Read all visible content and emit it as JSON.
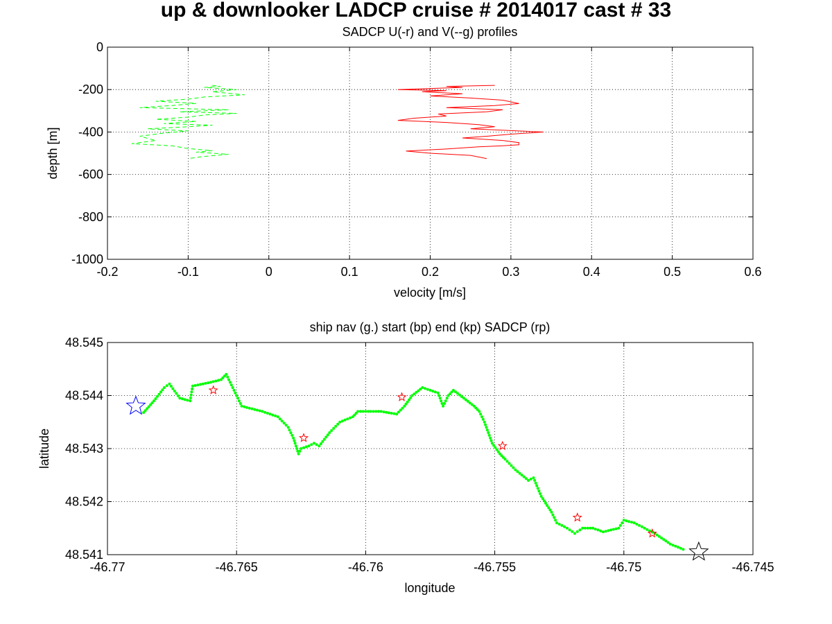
{
  "suptitle": "up & downlooker LADCP cruise # 2014017 cast # 33",
  "chart_data": [
    {
      "type": "line",
      "title": "SADCP U(-r) and V(--g) profiles",
      "xlabel": "velocity [m/s]",
      "ylabel": "depth [m]",
      "xlim": [
        -0.2,
        0.6
      ],
      "ylim": [
        -1000,
        0
      ],
      "xticks": [
        "-0.2",
        "-0.1",
        "0",
        "0.1",
        "0.2",
        "0.3",
        "0.4",
        "0.5",
        "0.6"
      ],
      "yticks": [
        "0",
        "-200",
        "-400",
        "-600",
        "-800",
        "-1000"
      ],
      "grid": true,
      "series": [
        {
          "color": "#ff0000",
          "style": "solid",
          "points": [
            [
              0.28,
              -180
            ],
            [
              0.22,
              -185
            ],
            [
              0.24,
              -190
            ],
            [
              0.16,
              -200
            ],
            [
              0.22,
              -205
            ],
            [
              0.19,
              -210
            ],
            [
              0.24,
              -220
            ],
            [
              0.2,
              -230
            ],
            [
              0.25,
              -240
            ],
            [
              0.29,
              -250
            ],
            [
              0.3,
              -258
            ],
            [
              0.31,
              -266
            ],
            [
              0.28,
              -275
            ],
            [
              0.22,
              -285
            ],
            [
              0.29,
              -295
            ],
            [
              0.27,
              -305
            ],
            [
              0.21,
              -315
            ],
            [
              0.22,
              -325
            ],
            [
              0.18,
              -335
            ],
            [
              0.16,
              -345
            ],
            [
              0.22,
              -355
            ],
            [
              0.26,
              -365
            ],
            [
              0.28,
              -375
            ],
            [
              0.25,
              -385
            ],
            [
              0.34,
              -400
            ],
            [
              0.3,
              -410
            ],
            [
              0.27,
              -420
            ],
            [
              0.24,
              -428
            ],
            [
              0.27,
              -435
            ],
            [
              0.29,
              -440
            ],
            [
              0.31,
              -450
            ],
            [
              0.31,
              -460
            ],
            [
              0.29,
              -465
            ],
            [
              0.26,
              -470
            ],
            [
              0.22,
              -480
            ],
            [
              0.17,
              -490
            ],
            [
              0.2,
              -500
            ],
            [
              0.25,
              -510
            ],
            [
              0.27,
              -525
            ]
          ]
        },
        {
          "color": "#00ff00",
          "style": "dashed",
          "points": [
            [
              -0.07,
              -180
            ],
            [
              -0.06,
              -185
            ],
            [
              -0.08,
              -190
            ],
            [
              -0.04,
              -200
            ],
            [
              -0.07,
              -210
            ],
            [
              -0.03,
              -225
            ],
            [
              -0.08,
              -235
            ],
            [
              -0.1,
              -245
            ],
            [
              -0.14,
              -255
            ],
            [
              -0.09,
              -265
            ],
            [
              -0.12,
              -275
            ],
            [
              -0.16,
              -285
            ],
            [
              -0.05,
              -295
            ],
            [
              -0.11,
              -305
            ],
            [
              -0.04,
              -312
            ],
            [
              -0.08,
              -320
            ],
            [
              -0.1,
              -330
            ],
            [
              -0.14,
              -340
            ],
            [
              -0.09,
              -350
            ],
            [
              -0.13,
              -360
            ],
            [
              -0.07,
              -368
            ],
            [
              -0.1,
              -375
            ],
            [
              -0.15,
              -385
            ],
            [
              -0.1,
              -395
            ],
            [
              -0.13,
              -405
            ],
            [
              -0.16,
              -420
            ],
            [
              -0.15,
              -430
            ],
            [
              -0.14,
              -440
            ],
            [
              -0.17,
              -455
            ],
            [
              -0.12,
              -465
            ],
            [
              -0.1,
              -478
            ],
            [
              -0.07,
              -488
            ],
            [
              -0.09,
              -495
            ],
            [
              -0.05,
              -505
            ],
            [
              -0.08,
              -515
            ],
            [
              -0.1,
              -525
            ]
          ]
        }
      ]
    },
    {
      "type": "scatter",
      "title": "ship nav (g.) start (bp) end (kp) SADCP (rp)",
      "xlabel": "longitude",
      "ylabel": "latitude",
      "xlim": [
        -46.77,
        -46.745
      ],
      "ylim": [
        48.541,
        48.545
      ],
      "xticks": [
        "-46.77",
        "-46.765",
        "-46.76",
        "-46.755",
        "-46.75",
        "-46.745"
      ],
      "yticks": [
        "48.545",
        "48.544",
        "48.543",
        "48.542",
        "48.541"
      ],
      "grid": true,
      "track_color": "#00ff00",
      "track": [
        [
          -46.7686,
          48.54368
        ],
        [
          -46.7682,
          48.5439
        ],
        [
          -46.7678,
          48.54415
        ],
        [
          -46.7676,
          48.54422
        ],
        [
          -46.7672,
          48.54395
        ],
        [
          -46.7668,
          48.5439
        ],
        [
          -46.7667,
          48.54418
        ],
        [
          -46.7665,
          48.5442
        ],
        [
          -46.766,
          48.54425
        ],
        [
          -46.7656,
          48.5443
        ],
        [
          -46.7654,
          48.5444
        ],
        [
          -46.7652,
          48.5442
        ],
        [
          -46.765,
          48.544
        ],
        [
          -46.7648,
          48.5438
        ],
        [
          -46.764,
          48.5437
        ],
        [
          -46.7634,
          48.5436
        ],
        [
          -46.763,
          48.5434
        ],
        [
          -46.7628,
          48.5432
        ],
        [
          -46.7626,
          48.5429
        ],
        [
          -46.7625,
          48.543
        ],
        [
          -46.7622,
          48.54305
        ],
        [
          -46.762,
          48.5431
        ],
        [
          -46.7618,
          48.54305
        ],
        [
          -46.7614,
          48.5433
        ],
        [
          -46.761,
          48.5435
        ],
        [
          -46.7605,
          48.5436
        ],
        [
          -46.7603,
          48.5437
        ],
        [
          -46.76,
          48.5437
        ],
        [
          -46.7594,
          48.5437
        ],
        [
          -46.7588,
          48.54365
        ],
        [
          -46.7585,
          48.5438
        ],
        [
          -46.7582,
          48.544
        ],
        [
          -46.7578,
          48.54415
        ],
        [
          -46.7572,
          48.54405
        ],
        [
          -46.757,
          48.5438
        ],
        [
          -46.7568,
          48.544
        ],
        [
          -46.7566,
          48.5441
        ],
        [
          -46.7562,
          48.54395
        ],
        [
          -46.7558,
          48.5438
        ],
        [
          -46.7556,
          48.5437
        ],
        [
          -46.7554,
          48.5435
        ],
        [
          -46.7551,
          48.5431
        ],
        [
          -46.7548,
          48.5429
        ],
        [
          -46.7546,
          48.5428
        ],
        [
          -46.7542,
          48.5426
        ],
        [
          -46.7537,
          48.5424
        ],
        [
          -46.7535,
          48.54245
        ],
        [
          -46.7532,
          48.5421
        ],
        [
          -46.7528,
          48.5418
        ],
        [
          -46.7526,
          48.5416
        ],
        [
          -46.7522,
          48.5415
        ],
        [
          -46.7519,
          48.5414
        ],
        [
          -46.7516,
          48.5415
        ],
        [
          -46.7512,
          48.5415
        ],
        [
          -46.7508,
          48.54143
        ],
        [
          -46.7502,
          48.5415
        ],
        [
          -46.75,
          48.54165
        ],
        [
          -46.7496,
          48.5416
        ],
        [
          -46.7492,
          48.5415
        ],
        [
          -46.7488,
          48.5414
        ],
        [
          -46.7482,
          48.5412
        ],
        [
          -46.7477,
          48.5411
        ]
      ],
      "start": {
        "lon": -46.7689,
        "lat": 48.5438,
        "color": "#0000ff"
      },
      "end": {
        "lon": -46.7471,
        "lat": 48.54105,
        "color": "#000000"
      },
      "sadcp_color": "#ff0000",
      "sadcp_points": [
        [
          -46.7659,
          48.5441
        ],
        [
          -46.7624,
          48.5432
        ],
        [
          -46.7586,
          48.54397
        ],
        [
          -46.7547,
          48.54305
        ],
        [
          -46.7518,
          48.5417
        ],
        [
          -46.7489,
          48.5414
        ]
      ]
    }
  ]
}
